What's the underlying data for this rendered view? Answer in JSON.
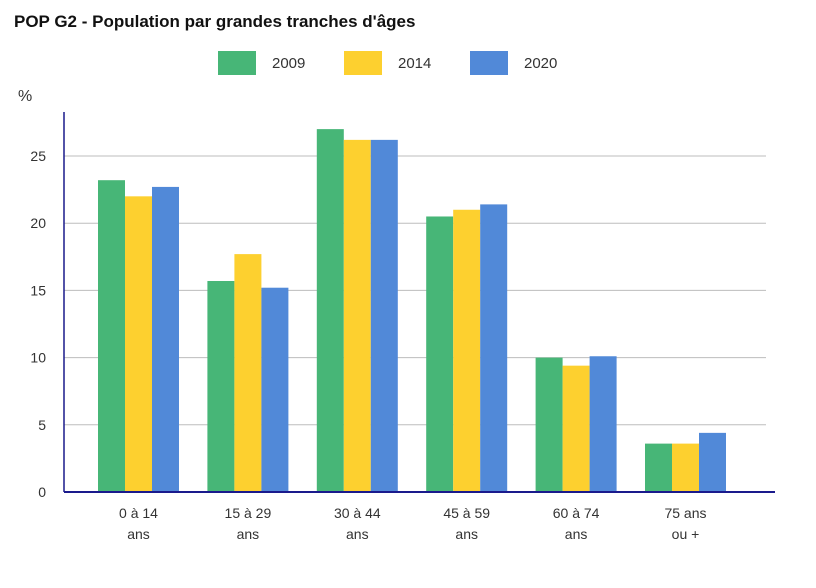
{
  "chart_data": {
    "type": "bar",
    "title": "POP G2 - Population par grandes tranches d'âges",
    "ylabel": "%",
    "xlabel": "",
    "ylim": [
      0,
      29
    ],
    "yticks": [
      0,
      5,
      10,
      15,
      20,
      25
    ],
    "grid": true,
    "legend_position": "top-center",
    "categories": [
      [
        "0 à 14",
        "ans"
      ],
      [
        "15 à 29",
        "ans"
      ],
      [
        "30 à 44",
        "ans"
      ],
      [
        "45 à 59",
        "ans"
      ],
      [
        "60 à 74",
        "ans"
      ],
      [
        "75 ans",
        "ou +"
      ]
    ],
    "series": [
      {
        "name": "2009",
        "color": "#47b677",
        "values": [
          23.2,
          15.7,
          27.0,
          20.5,
          10.0,
          3.6
        ]
      },
      {
        "name": "2014",
        "color": "#fdd02f",
        "values": [
          22.0,
          17.7,
          26.2,
          21.0,
          9.4,
          3.6
        ]
      },
      {
        "name": "2020",
        "color": "#5189d8",
        "values": [
          22.7,
          15.2,
          26.2,
          21.4,
          10.1,
          4.4
        ]
      }
    ]
  }
}
